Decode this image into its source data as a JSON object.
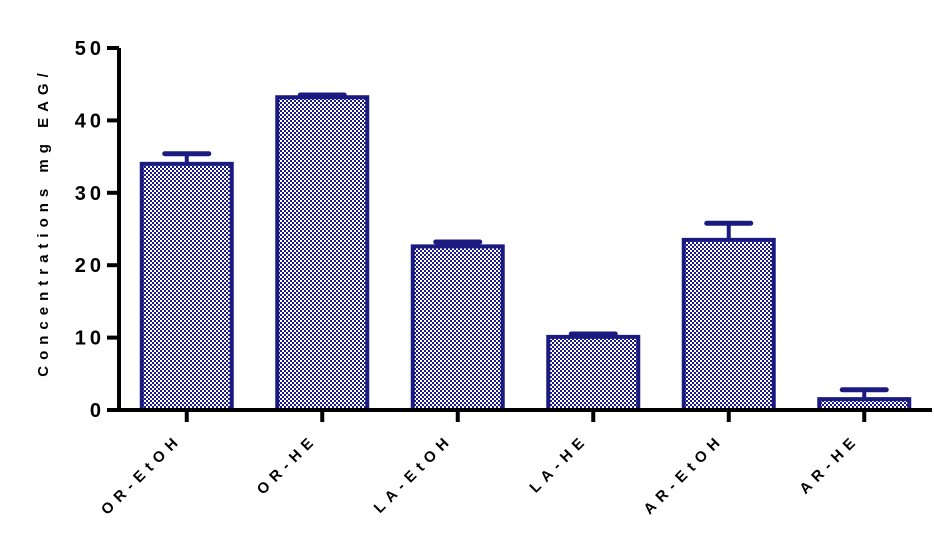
{
  "chart_data": {
    "type": "bar",
    "title": "",
    "xlabel": "",
    "ylabel": "Concentrations mg EAG/",
    "categories": [
      "OR-EtOH",
      "OR-HE",
      "LA-EtOH",
      "LA-HE",
      "AR-EtOH",
      "AR-HE"
    ],
    "values": [
      34,
      43.2,
      22.6,
      10.1,
      23.5,
      1.5
    ],
    "errors": [
      1.4,
      0.3,
      0.6,
      0.4,
      2.3,
      1.3
    ],
    "ylim": [
      0,
      50
    ],
    "yticks": [
      "0",
      "10",
      "20",
      "30",
      "40",
      "50"
    ],
    "grid": false,
    "colors": {
      "bar_fill": "#1a1a80",
      "bar_pattern": "#ffffff",
      "axis": "#000000"
    }
  }
}
